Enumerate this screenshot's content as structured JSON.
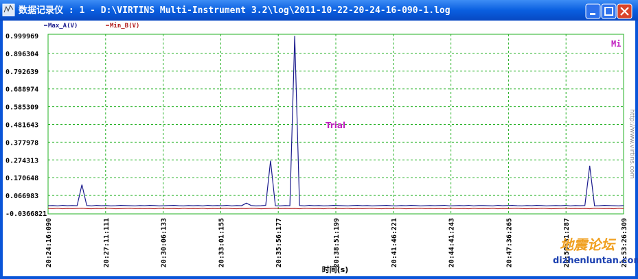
{
  "window": {
    "title": "数据记录仪 : 1 - D:\\VIRTINS Multi-Instrument 3.2\\log\\2011-10-22-20-24-16-090-1.log"
  },
  "watermark": {
    "site": "http://www.virtins.com",
    "forum": "地震论坛",
    "forum_url": "dizhenluntan.com"
  },
  "chart_data": {
    "type": "line",
    "annotations": [
      "Trial",
      "Mi"
    ],
    "x_label": "时间(s)",
    "xticks": [
      "20:24:16:090",
      "20:27:11:111",
      "20:30:06:133",
      "20:33:01:155",
      "20:35:56:177",
      "20:38:51:199",
      "20:41:46:221",
      "20:44:41:243",
      "20:47:36:265",
      "20:50:31:287",
      "20:53:26:309"
    ],
    "ylim": [
      -0.0366821,
      0.999969
    ],
    "yticks": [
      0.999969,
      0.896304,
      0.792639,
      0.688974,
      0.585309,
      0.481643,
      0.377978,
      0.274313,
      0.170648,
      0.066983,
      -0.0366821
    ],
    "grid": true,
    "series": [
      {
        "name": "Max_A(V)",
        "color": "#1a1a8c",
        "values": [
          0.007,
          0.008,
          0.006,
          0.009,
          0.007,
          0.008,
          0.007,
          0.13,
          0.008,
          0.006,
          0.009,
          0.007,
          0.008,
          0.006,
          0.007,
          0.009,
          0.008,
          0.007,
          0.006,
          0.008,
          0.007,
          0.009,
          0.008,
          0.006,
          0.007,
          0.008,
          0.009,
          0.007,
          0.006,
          0.008,
          0.007,
          0.008,
          0.006,
          0.009,
          0.007,
          0.008,
          0.007,
          0.009,
          0.006,
          0.008,
          0.007,
          0.022,
          0.008,
          0.006,
          0.007,
          0.009,
          0.27,
          0.007,
          0.006,
          0.008,
          0.007,
          0.999,
          0.008,
          0.006,
          0.009,
          0.007,
          0.008,
          0.006,
          0.007,
          0.009,
          0.008,
          0.007,
          0.006,
          0.008,
          0.009,
          0.007,
          0.008,
          0.006,
          0.007,
          0.008,
          0.009,
          0.007,
          0.006,
          0.008,
          0.007,
          0.009,
          0.008,
          0.006,
          0.007,
          0.008,
          0.007,
          0.008,
          0.009,
          0.006,
          0.007,
          0.008,
          0.007,
          0.009,
          0.006,
          0.008,
          0.008,
          0.007,
          0.006,
          0.009,
          0.007,
          0.008,
          0.009,
          0.007,
          0.006,
          0.008,
          0.007,
          0.009,
          0.008,
          0.006,
          0.007,
          0.008,
          0.007,
          0.009,
          0.006,
          0.008,
          0.007,
          0.008,
          0.24,
          0.006,
          0.007,
          0.009,
          0.008,
          0.007,
          0.006,
          0.008
        ]
      },
      {
        "name": "Min_B(V)",
        "color": "#b01818",
        "values": [
          -0.009,
          -0.01,
          -0.008,
          -0.011,
          -0.009,
          -0.01,
          -0.009,
          -0.008,
          -0.01,
          -0.011,
          -0.009,
          -0.01,
          -0.008,
          -0.009,
          -0.011,
          -0.01,
          -0.009,
          -0.008,
          -0.01,
          -0.009,
          -0.01,
          -0.009,
          -0.011,
          -0.008,
          -0.009,
          -0.01,
          -0.009,
          -0.011,
          -0.008,
          -0.01,
          -0.009,
          -0.01,
          -0.008,
          -0.011,
          -0.009,
          -0.01,
          -0.009,
          -0.008,
          -0.01,
          -0.011,
          -0.009,
          -0.01,
          -0.008,
          -0.009,
          -0.011,
          -0.01,
          -0.009,
          -0.008,
          -0.01,
          -0.009,
          -0.01,
          -0.009,
          -0.011,
          -0.008,
          -0.009,
          -0.01,
          -0.009,
          -0.011,
          -0.008,
          -0.01,
          -0.009,
          -0.01,
          -0.008,
          -0.011,
          -0.009,
          -0.01,
          -0.009,
          -0.008,
          -0.01,
          -0.011,
          -0.009,
          -0.01,
          -0.008,
          -0.009,
          -0.011,
          -0.01,
          -0.009,
          -0.008,
          -0.01,
          -0.009,
          -0.01,
          -0.009,
          -0.011,
          -0.008,
          -0.009,
          -0.01,
          -0.009,
          -0.011,
          -0.008,
          -0.01,
          -0.009,
          -0.01,
          -0.008,
          -0.011,
          -0.009,
          -0.01,
          -0.009,
          -0.008,
          -0.01,
          -0.011,
          -0.009,
          -0.01,
          -0.008,
          -0.009,
          -0.011,
          -0.01,
          -0.009,
          -0.008,
          -0.01,
          -0.009,
          -0.01,
          -0.009,
          -0.011,
          -0.008,
          -0.009,
          -0.01,
          -0.009,
          -0.011,
          -0.008,
          -0.01
        ]
      }
    ]
  }
}
